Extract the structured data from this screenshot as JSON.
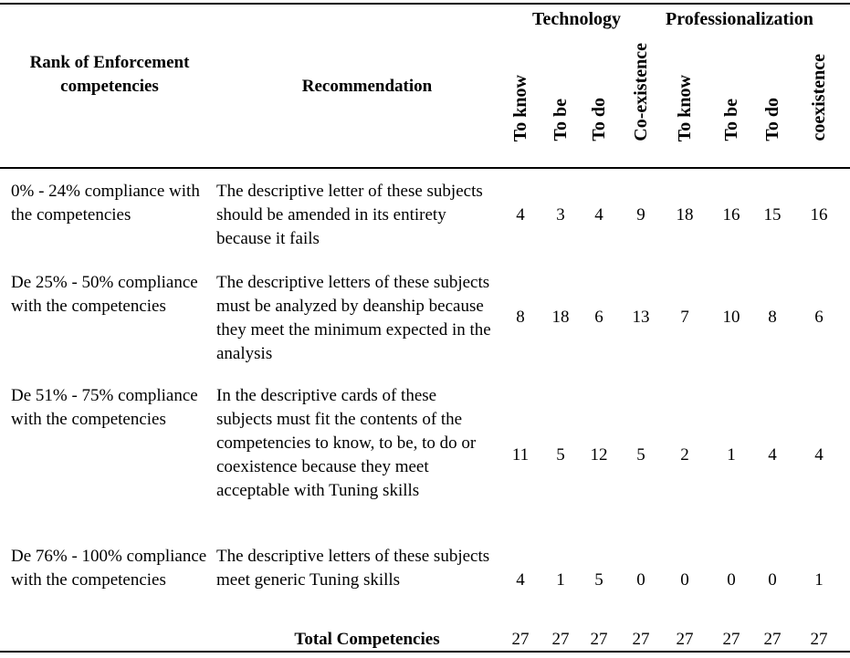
{
  "header": {
    "rank": "Rank of Enforcement competencies",
    "recommendation": "Recommendation",
    "groups": [
      "Technology",
      "Professionalization"
    ],
    "columns": [
      "To know",
      "To be",
      "To do",
      "Co-existence",
      "To know",
      "To be",
      "To do",
      "coexistence"
    ]
  },
  "rows": [
    {
      "rank": "0% - 24% compliance with the competencies",
      "recommendation": "The descriptive letter of these subjects should be amended in its entirety because it fails",
      "values": [
        "4",
        "3",
        "4",
        "9",
        "18",
        "16",
        "15",
        "16"
      ]
    },
    {
      "rank": "De 25% - 50% compliance with the competencies",
      "recommendation": "The descriptive letters of these subjects must be analyzed by deanship because they meet the minimum expected in the analysis",
      "values": [
        "8",
        "18",
        "6",
        "13",
        "7",
        "10",
        "8",
        "6"
      ]
    },
    {
      "rank": "De 51% - 75% compliance with the competencies",
      "recommendation": "In the descriptive cards of these subjects must fit the contents of the competencies to know, to be, to do or coexistence because they meet acceptable with Tuning skills",
      "values": [
        "11",
        "5",
        "12",
        "5",
        "2",
        "1",
        "4",
        "4"
      ]
    },
    {
      "rank": "De 76% - 100% compliance with the competencies",
      "recommendation": "The descriptive letters of these subjects meet generic Tuning skills",
      "values": [
        "4",
        "1",
        "5",
        "0",
        "0",
        "0",
        "0",
        "1"
      ]
    }
  ],
  "total": {
    "label": "Total Competencies",
    "values": [
      "27",
      "27",
      "27",
      "27",
      "27",
      "27",
      "27",
      "27"
    ]
  }
}
